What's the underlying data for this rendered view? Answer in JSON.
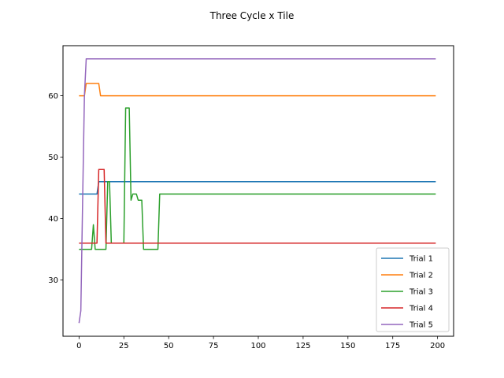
{
  "chart_data": {
    "type": "line",
    "title": "Three Cycle x Tile",
    "xlabel": "",
    "ylabel": "",
    "xlim": [
      -8.95,
      208.95
    ],
    "ylim": [
      20.85,
      68.15
    ],
    "x_ticks": [
      0,
      25,
      50,
      75,
      100,
      125,
      150,
      175,
      200
    ],
    "y_ticks": [
      30,
      40,
      50,
      60
    ],
    "grid": false,
    "legend_position": "lower-right",
    "series": [
      {
        "name": "Trial 1",
        "color": "#1f77b4",
        "points": [
          [
            0,
            44
          ],
          [
            10,
            44
          ],
          [
            11,
            46
          ],
          [
            199,
            46
          ]
        ]
      },
      {
        "name": "Trial 2",
        "color": "#ff7f0e",
        "points": [
          [
            0,
            60
          ],
          [
            3,
            60
          ],
          [
            4,
            62
          ],
          [
            11,
            62
          ],
          [
            12,
            60
          ],
          [
            199,
            60
          ]
        ]
      },
      {
        "name": "Trial 3",
        "color": "#2ca02c",
        "points": [
          [
            0,
            35
          ],
          [
            7,
            35
          ],
          [
            8,
            39
          ],
          [
            9,
            35
          ],
          [
            15,
            35
          ],
          [
            16,
            46
          ],
          [
            17,
            46
          ],
          [
            18,
            36
          ],
          [
            25,
            36
          ],
          [
            26,
            58
          ],
          [
            28,
            58
          ],
          [
            29,
            43
          ],
          [
            30,
            44
          ],
          [
            32,
            44
          ],
          [
            33,
            43
          ],
          [
            35,
            43
          ],
          [
            36,
            35
          ],
          [
            44,
            35
          ],
          [
            45,
            44
          ],
          [
            199,
            44
          ]
        ]
      },
      {
        "name": "Trial 4",
        "color": "#d62728",
        "points": [
          [
            0,
            36
          ],
          [
            10,
            36
          ],
          [
            11,
            48
          ],
          [
            14,
            48
          ],
          [
            15,
            36
          ],
          [
            199,
            36
          ]
        ]
      },
      {
        "name": "Trial 5",
        "color": "#9467bd",
        "points": [
          [
            0,
            23
          ],
          [
            1,
            25
          ],
          [
            2,
            43
          ],
          [
            3,
            60
          ],
          [
            4,
            66
          ],
          [
            199,
            66
          ]
        ]
      }
    ]
  }
}
